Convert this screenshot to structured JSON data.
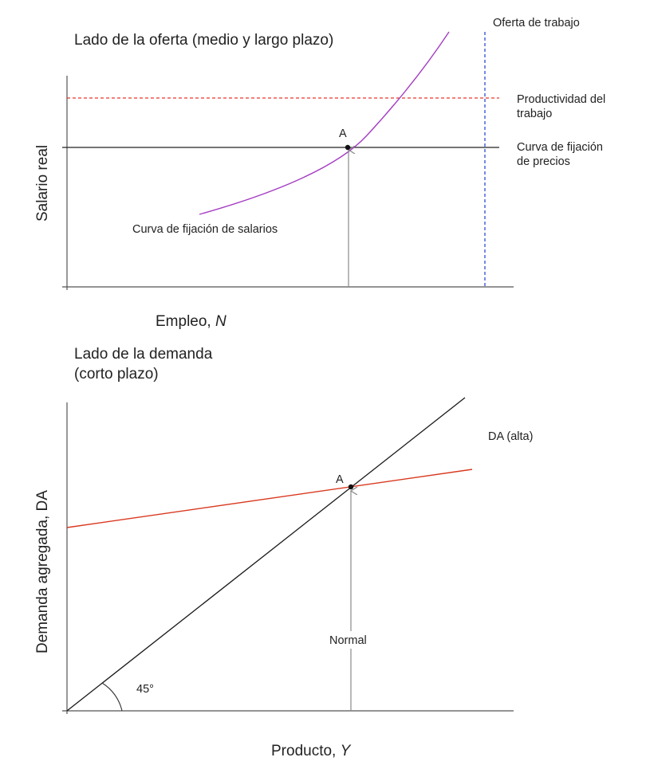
{
  "colors": {
    "axis": "#555555",
    "price_curve": "#222222",
    "productivity": "#e8372a",
    "wage_curve": "#a43cc2",
    "labour_supply": "#2e4bd6",
    "arrow": "#8a8a8a",
    "ad_line": "#d9381e",
    "line45": "#1a1a1a"
  },
  "top_panel": {
    "title": "Lado de la oferta (medio y largo plazo)",
    "y_axis_label": "Salario real",
    "x_axis_label_prefix": "Empleo, ",
    "x_axis_label_var": "N",
    "labour_supply_label": "Oferta de trabajo",
    "productivity_label_line1": "Productividad del",
    "productivity_label_line2": "trabajo",
    "price_curve_label_line1": "Curva de fijación",
    "price_curve_label_line2": "de precios",
    "wage_curve_label": "Curva de fijación de salarios",
    "point_label": "A"
  },
  "bottom_panel": {
    "title_line1": "Lado de la demanda",
    "title_line2": "(corto plazo)",
    "y_axis_label": "Demanda agregada, DA",
    "x_axis_label_prefix": "Producto, ",
    "x_axis_label_var": "Y",
    "ad_label": "DA (alta)",
    "point_label": "A",
    "normal_label": "Normal",
    "angle_label": "45°"
  }
}
